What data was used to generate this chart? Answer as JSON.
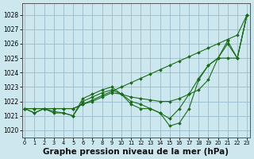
{
  "bg_color": "#cce8ee",
  "grid_color": "#99bbcc",
  "line_color": "#1a6b1a",
  "marker_color": "#1a6b1a",
  "xlabel": "Graphe pression niveau de la mer (hPa)",
  "xlabel_fontsize": 7.5,
  "ylim": [
    1019.5,
    1028.8
  ],
  "xlim": [
    -0.3,
    23.3
  ],
  "yticks": [
    1020,
    1021,
    1022,
    1023,
    1024,
    1025,
    1026,
    1027,
    1028
  ],
  "xticks": [
    0,
    1,
    2,
    3,
    4,
    5,
    6,
    7,
    8,
    9,
    10,
    11,
    12,
    13,
    14,
    15,
    16,
    17,
    18,
    19,
    20,
    21,
    22,
    23
  ],
  "series": [
    [
      1021.5,
      1021.5,
      1021.5,
      1021.5,
      1021.5,
      1021.5,
      1021.8,
      1022.1,
      1022.4,
      1022.7,
      1023.0,
      1023.3,
      1023.6,
      1023.9,
      1024.2,
      1024.5,
      1024.8,
      1025.1,
      1025.4,
      1025.7,
      1026.0,
      1026.3,
      1026.6,
      1028.0
    ],
    [
      1021.5,
      1021.5,
      1021.5,
      1021.5,
      1021.5,
      1021.5,
      1021.8,
      1022.0,
      1022.3,
      1022.6,
      1022.5,
      1022.3,
      1022.2,
      1022.1,
      1022.0,
      1022.0,
      1022.2,
      1022.5,
      1022.8,
      1023.5,
      1025.0,
      1025.0,
      1025.0,
      1028.0
    ],
    [
      1021.5,
      1021.2,
      1021.5,
      1021.2,
      1021.2,
      1021.0,
      1022.0,
      1022.3,
      1022.6,
      1022.8,
      1022.5,
      1022.0,
      1021.8,
      1021.5,
      1021.2,
      1020.8,
      1021.5,
      1022.5,
      1023.6,
      1024.5,
      1025.0,
      1026.2,
      1025.0,
      1028.0
    ],
    [
      1021.5,
      1021.2,
      1021.5,
      1021.3,
      1021.2,
      1021.0,
      1022.2,
      1022.5,
      1022.8,
      1023.0,
      1022.5,
      1021.8,
      1021.5,
      1021.5,
      1021.2,
      1020.3,
      1020.5,
      1021.5,
      1023.5,
      1024.5,
      1025.0,
      1026.0,
      1025.0,
      1028.0
    ]
  ]
}
